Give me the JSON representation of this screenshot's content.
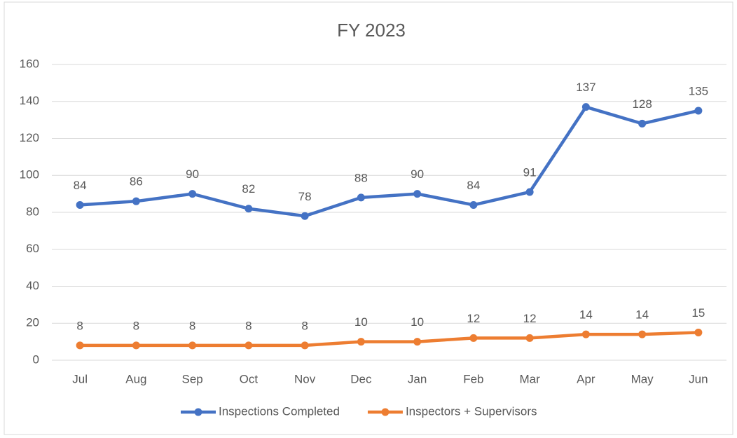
{
  "chart_data": {
    "type": "line",
    "title": "FY 2023",
    "categories": [
      "Jul",
      "Aug",
      "Sep",
      "Oct",
      "Nov",
      "Dec",
      "Jan",
      "Feb",
      "Mar",
      "Apr",
      "May",
      "Jun"
    ],
    "series": [
      {
        "name": "Inspections Completed",
        "color": "#4472c4",
        "values": [
          84,
          86,
          90,
          82,
          78,
          88,
          90,
          84,
          91,
          137,
          128,
          135
        ]
      },
      {
        "name": "Inspectors + Supervisors",
        "color": "#ed7d31",
        "values": [
          8,
          8,
          8,
          8,
          8,
          10,
          10,
          12,
          12,
          14,
          14,
          15
        ]
      }
    ],
    "ylim": [
      0,
      160
    ],
    "yticks": [
      0,
      20,
      40,
      60,
      80,
      100,
      120,
      140,
      160
    ],
    "grid": true,
    "legend": "bottom"
  }
}
